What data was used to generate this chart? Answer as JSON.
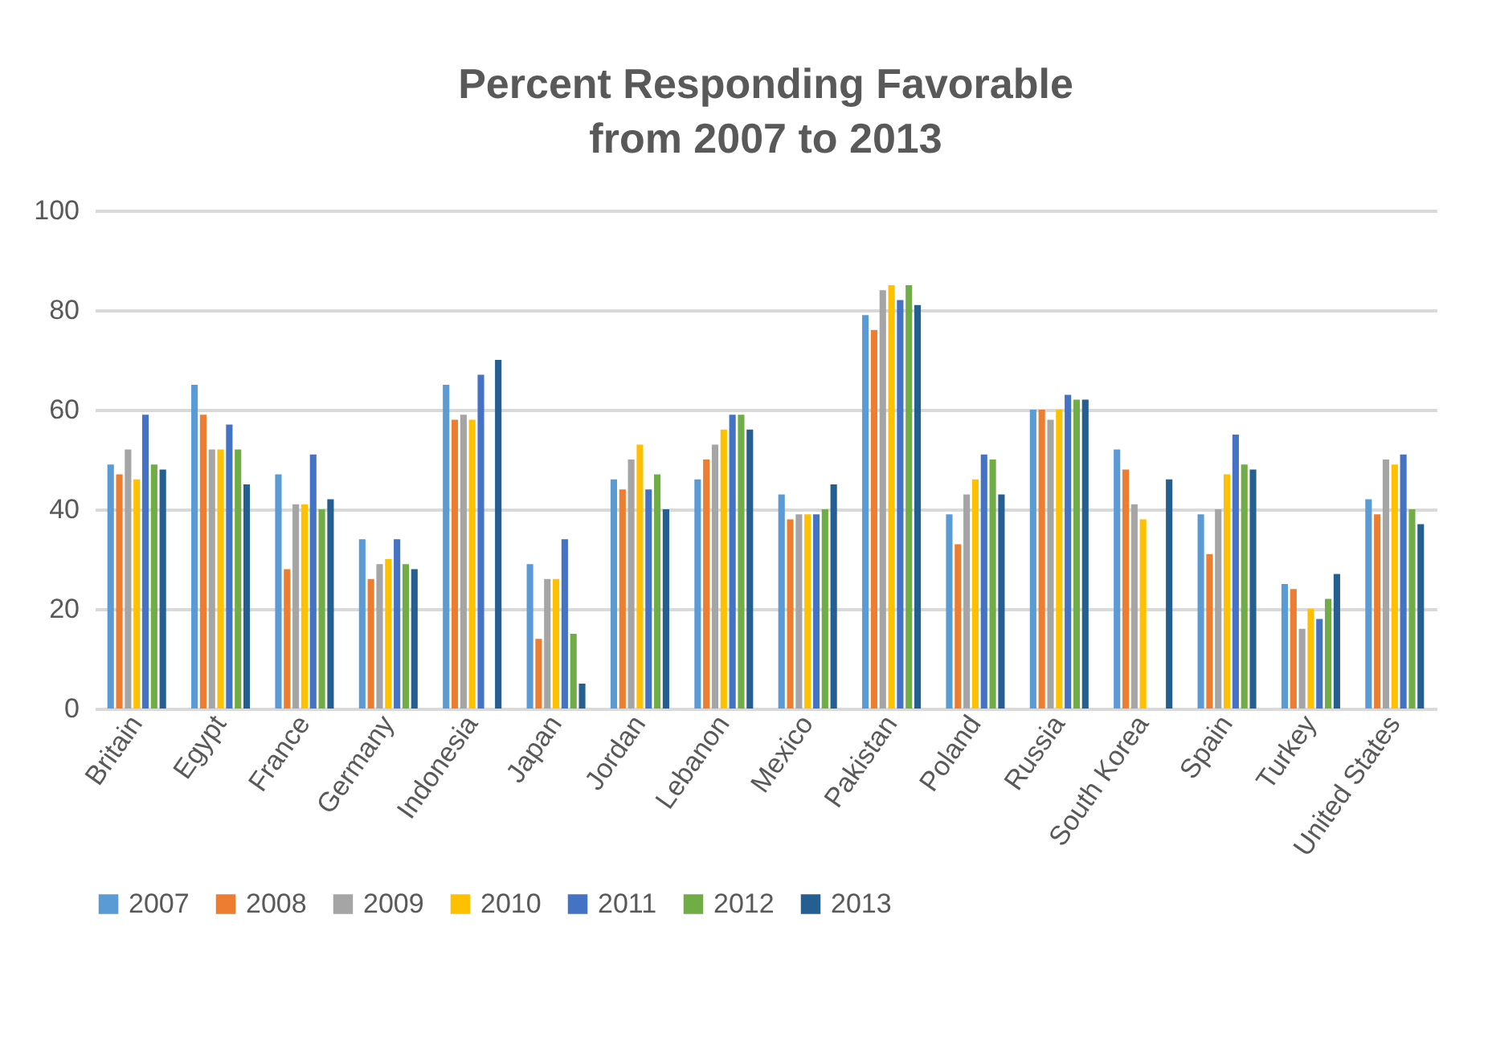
{
  "chart_data": {
    "type": "bar",
    "title": "Percent Responding Favorable\nfrom 2007 to 2013",
    "categories": [
      "Britain",
      "Egypt",
      "France",
      "Germany",
      "Indonesia",
      "Japan",
      "Jordan",
      "Lebanon",
      "Mexico",
      "Pakistan",
      "Poland",
      "Russia",
      "South Korea",
      "Spain",
      "Turkey",
      "United States"
    ],
    "series": [
      {
        "name": "2007",
        "color": "#5b9bd5",
        "values": [
          49,
          65,
          47,
          34,
          65,
          29,
          46,
          46,
          43,
          79,
          39,
          60,
          52,
          39,
          25,
          42
        ]
      },
      {
        "name": "2008",
        "color": "#ed7d31",
        "values": [
          47,
          59,
          28,
          26,
          58,
          14,
          44,
          50,
          38,
          76,
          33,
          60,
          48,
          31,
          24,
          39
        ]
      },
      {
        "name": "2009",
        "color": "#a5a5a5",
        "values": [
          52,
          52,
          41,
          29,
          59,
          26,
          50,
          53,
          39,
          84,
          43,
          58,
          41,
          40,
          16,
          50
        ]
      },
      {
        "name": "2010",
        "color": "#ffc000",
        "values": [
          46,
          52,
          41,
          30,
          58,
          26,
          53,
          56,
          39,
          85,
          46,
          60,
          38,
          47,
          20,
          49
        ]
      },
      {
        "name": "2011",
        "color": "#4472c4",
        "values": [
          59,
          57,
          51,
          34,
          67,
          34,
          44,
          59,
          39,
          82,
          51,
          63,
          null,
          55,
          18,
          51
        ]
      },
      {
        "name": "2012",
        "color": "#70ad47",
        "values": [
          49,
          52,
          40,
          29,
          null,
          15,
          47,
          59,
          40,
          85,
          50,
          62,
          null,
          49,
          22,
          40
        ]
      },
      {
        "name": "2013",
        "color": "#255e91",
        "values": [
          48,
          45,
          42,
          28,
          70,
          5,
          40,
          56,
          45,
          81,
          43,
          62,
          46,
          48,
          27,
          37
        ]
      }
    ],
    "ylim": [
      0,
      100
    ],
    "yticks": [
      0,
      20,
      40,
      60,
      80,
      100
    ],
    "grid": "y",
    "legend": "bottom"
  }
}
